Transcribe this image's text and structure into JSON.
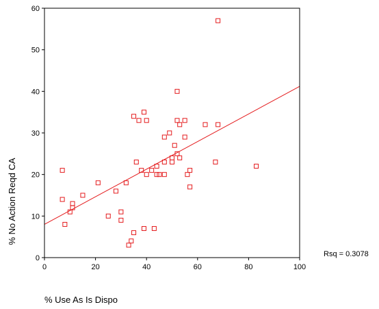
{
  "chart_data": {
    "type": "scatter",
    "title": "",
    "xlabel": "% Use As Is Dispo",
    "ylabel": "% No Action Reqd CA",
    "xlim": [
      0,
      100
    ],
    "ylim": [
      0,
      60
    ],
    "xticks": [
      0,
      20,
      40,
      60,
      80,
      100
    ],
    "yticks": [
      0,
      10,
      20,
      30,
      40,
      50,
      60
    ],
    "grid": false,
    "marker": "open-square",
    "color": "#e41a1c",
    "annotation": "Rsq = 0.3078",
    "fit_line": {
      "x0": 0,
      "y0": 8.0,
      "x1": 100,
      "y1": 41.2
    },
    "points": [
      {
        "x": 7,
        "y": 21
      },
      {
        "x": 7,
        "y": 14
      },
      {
        "x": 8,
        "y": 8
      },
      {
        "x": 10,
        "y": 11
      },
      {
        "x": 11,
        "y": 12
      },
      {
        "x": 11,
        "y": 13
      },
      {
        "x": 15,
        "y": 15
      },
      {
        "x": 21,
        "y": 18
      },
      {
        "x": 25,
        "y": 10
      },
      {
        "x": 28,
        "y": 16
      },
      {
        "x": 30,
        "y": 11
      },
      {
        "x": 30,
        "y": 9
      },
      {
        "x": 32,
        "y": 18
      },
      {
        "x": 33,
        "y": 3
      },
      {
        "x": 34,
        "y": 4
      },
      {
        "x": 35,
        "y": 6
      },
      {
        "x": 35,
        "y": 34
      },
      {
        "x": 36,
        "y": 23
      },
      {
        "x": 37,
        "y": 33
      },
      {
        "x": 38,
        "y": 21
      },
      {
        "x": 39,
        "y": 35
      },
      {
        "x": 40,
        "y": 33
      },
      {
        "x": 40,
        "y": 20
      },
      {
        "x": 39,
        "y": 7
      },
      {
        "x": 42,
        "y": 21
      },
      {
        "x": 43,
        "y": 7
      },
      {
        "x": 44,
        "y": 22
      },
      {
        "x": 44,
        "y": 20
      },
      {
        "x": 45,
        "y": 20
      },
      {
        "x": 47,
        "y": 20
      },
      {
        "x": 47,
        "y": 23
      },
      {
        "x": 47,
        "y": 29
      },
      {
        "x": 49,
        "y": 30
      },
      {
        "x": 50,
        "y": 24
      },
      {
        "x": 50,
        "y": 23
      },
      {
        "x": 51,
        "y": 27
      },
      {
        "x": 52,
        "y": 40
      },
      {
        "x": 52,
        "y": 33
      },
      {
        "x": 52,
        "y": 25
      },
      {
        "x": 53,
        "y": 32
      },
      {
        "x": 53,
        "y": 24
      },
      {
        "x": 55,
        "y": 33
      },
      {
        "x": 55,
        "y": 29
      },
      {
        "x": 56,
        "y": 20
      },
      {
        "x": 57,
        "y": 21
      },
      {
        "x": 57,
        "y": 17
      },
      {
        "x": 63,
        "y": 32
      },
      {
        "x": 67,
        "y": 23
      },
      {
        "x": 68,
        "y": 32
      },
      {
        "x": 68,
        "y": 57
      },
      {
        "x": 83,
        "y": 22
      }
    ]
  }
}
